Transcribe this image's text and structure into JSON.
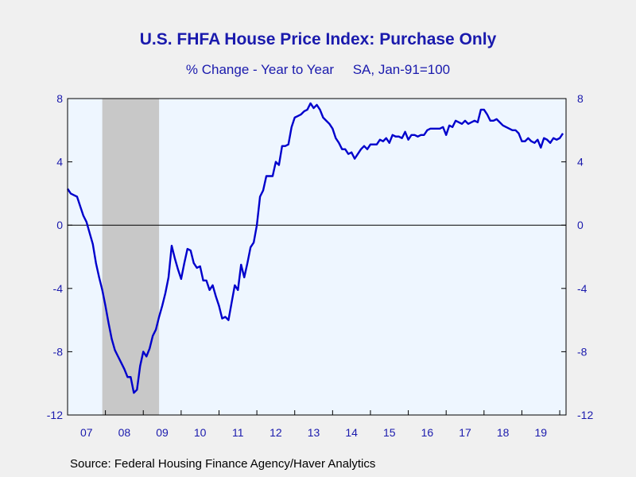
{
  "chart_data": {
    "type": "line",
    "title": "U.S. FHFA House Price Index: Purchase Only",
    "subtitle": "% Change - Year to Year     SA, Jan-91=100",
    "source": "Source:  Federal Housing Finance Agency/Haver Analytics",
    "ylim": [
      -12,
      8
    ],
    "y_ticks": [
      "8",
      "4",
      "0",
      "-4",
      "-8",
      "-12"
    ],
    "x_tick_labels": [
      "07",
      "08",
      "09",
      "10",
      "11",
      "12",
      "13",
      "14",
      "15",
      "16",
      "17",
      "18",
      "19"
    ],
    "x_range": [
      "2007-01",
      "2020-03"
    ],
    "recession_shading": [
      "2007-12",
      "2009-06"
    ],
    "grid": false,
    "colors": {
      "line": "#0000cc",
      "plot_background": "#eef6ff",
      "recession": "#c8c8c8",
      "text": "#1a1aad"
    },
    "series": [
      {
        "values": [
          [
            "2007-01",
            2.3
          ],
          [
            "2007-02",
            2.0
          ],
          [
            "2007-03",
            1.9
          ],
          [
            "2007-04",
            1.8
          ],
          [
            "2007-05",
            1.2
          ],
          [
            "2007-06",
            0.6
          ],
          [
            "2007-07",
            0.2
          ],
          [
            "2007-08",
            -0.5
          ],
          [
            "2007-09",
            -1.2
          ],
          [
            "2007-10",
            -2.4
          ],
          [
            "2007-11",
            -3.3
          ],
          [
            "2007-12",
            -4.1
          ],
          [
            "2008-01",
            -5.1
          ],
          [
            "2008-02",
            -6.2
          ],
          [
            "2008-03",
            -7.2
          ],
          [
            "2008-04",
            -7.9
          ],
          [
            "2008-05",
            -8.3
          ],
          [
            "2008-06",
            -8.7
          ],
          [
            "2008-07",
            -9.1
          ],
          [
            "2008-08",
            -9.6
          ],
          [
            "2008-09",
            -9.6
          ],
          [
            "2008-10",
            -10.6
          ],
          [
            "2008-11",
            -10.4
          ],
          [
            "2008-12",
            -8.9
          ],
          [
            "2009-01",
            -8.0
          ],
          [
            "2009-02",
            -8.3
          ],
          [
            "2009-03",
            -7.8
          ],
          [
            "2009-04",
            -7.0
          ],
          [
            "2009-05",
            -6.6
          ],
          [
            "2009-06",
            -5.8
          ],
          [
            "2009-07",
            -5.1
          ],
          [
            "2009-08",
            -4.3
          ],
          [
            "2009-09",
            -3.3
          ],
          [
            "2009-10",
            -1.3
          ],
          [
            "2009-11",
            -2.1
          ],
          [
            "2009-12",
            -2.8
          ],
          [
            "2010-01",
            -3.4
          ],
          [
            "2010-02",
            -2.4
          ],
          [
            "2010-03",
            -1.5
          ],
          [
            "2010-04",
            -1.6
          ],
          [
            "2010-05",
            -2.4
          ],
          [
            "2010-06",
            -2.7
          ],
          [
            "2010-07",
            -2.6
          ],
          [
            "2010-08",
            -3.5
          ],
          [
            "2010-09",
            -3.5
          ],
          [
            "2010-10",
            -4.1
          ],
          [
            "2010-11",
            -3.8
          ],
          [
            "2010-12",
            -4.5
          ],
          [
            "2011-01",
            -5.1
          ],
          [
            "2011-02",
            -5.9
          ],
          [
            "2011-03",
            -5.8
          ],
          [
            "2011-04",
            -6.0
          ],
          [
            "2011-05",
            -4.9
          ],
          [
            "2011-06",
            -3.8
          ],
          [
            "2011-07",
            -4.1
          ],
          [
            "2011-08",
            -2.5
          ],
          [
            "2011-09",
            -3.3
          ],
          [
            "2011-10",
            -2.4
          ],
          [
            "2011-11",
            -1.4
          ],
          [
            "2011-12",
            -1.1
          ],
          [
            "2012-01",
            0.0
          ],
          [
            "2012-02",
            1.8
          ],
          [
            "2012-03",
            2.2
          ],
          [
            "2012-04",
            3.1
          ],
          [
            "2012-05",
            3.1
          ],
          [
            "2012-06",
            3.1
          ],
          [
            "2012-07",
            4.0
          ],
          [
            "2012-08",
            3.8
          ],
          [
            "2012-09",
            5.0
          ],
          [
            "2012-10",
            5.0
          ],
          [
            "2012-11",
            5.1
          ],
          [
            "2012-12",
            6.2
          ],
          [
            "2013-01",
            6.8
          ],
          [
            "2013-02",
            6.9
          ],
          [
            "2013-03",
            7.0
          ],
          [
            "2013-04",
            7.2
          ],
          [
            "2013-05",
            7.3
          ],
          [
            "2013-06",
            7.7
          ],
          [
            "2013-07",
            7.4
          ],
          [
            "2013-08",
            7.6
          ],
          [
            "2013-09",
            7.3
          ],
          [
            "2013-10",
            6.8
          ],
          [
            "2013-11",
            6.6
          ],
          [
            "2013-12",
            6.4
          ],
          [
            "2014-01",
            6.1
          ],
          [
            "2014-02",
            5.5
          ],
          [
            "2014-03",
            5.2
          ],
          [
            "2014-04",
            4.8
          ],
          [
            "2014-05",
            4.8
          ],
          [
            "2014-06",
            4.5
          ],
          [
            "2014-07",
            4.6
          ],
          [
            "2014-08",
            4.2
          ],
          [
            "2014-09",
            4.5
          ],
          [
            "2014-10",
            4.8
          ],
          [
            "2014-11",
            5.0
          ],
          [
            "2014-12",
            4.8
          ],
          [
            "2015-01",
            5.1
          ],
          [
            "2015-02",
            5.1
          ],
          [
            "2015-03",
            5.1
          ],
          [
            "2015-04",
            5.4
          ],
          [
            "2015-05",
            5.3
          ],
          [
            "2015-06",
            5.5
          ],
          [
            "2015-07",
            5.2
          ],
          [
            "2015-08",
            5.7
          ],
          [
            "2015-09",
            5.6
          ],
          [
            "2015-10",
            5.6
          ],
          [
            "2015-11",
            5.5
          ],
          [
            "2015-12",
            5.9
          ],
          [
            "2016-01",
            5.4
          ],
          [
            "2016-02",
            5.7
          ],
          [
            "2016-03",
            5.7
          ],
          [
            "2016-04",
            5.6
          ],
          [
            "2016-05",
            5.7
          ],
          [
            "2016-06",
            5.7
          ],
          [
            "2016-07",
            6.0
          ],
          [
            "2016-08",
            6.1
          ],
          [
            "2016-09",
            6.1
          ],
          [
            "2016-10",
            6.1
          ],
          [
            "2016-11",
            6.1
          ],
          [
            "2016-12",
            6.2
          ],
          [
            "2017-01",
            5.7
          ],
          [
            "2017-02",
            6.3
          ],
          [
            "2017-03",
            6.2
          ],
          [
            "2017-04",
            6.6
          ],
          [
            "2017-05",
            6.5
          ],
          [
            "2017-06",
            6.4
          ],
          [
            "2017-07",
            6.6
          ],
          [
            "2017-08",
            6.4
          ],
          [
            "2017-09",
            6.5
          ],
          [
            "2017-10",
            6.6
          ],
          [
            "2017-11",
            6.5
          ],
          [
            "2017-12",
            7.3
          ],
          [
            "2018-01",
            7.3
          ],
          [
            "2018-02",
            7.0
          ],
          [
            "2018-03",
            6.6
          ],
          [
            "2018-04",
            6.6
          ],
          [
            "2018-05",
            6.7
          ],
          [
            "2018-06",
            6.5
          ],
          [
            "2018-07",
            6.3
          ],
          [
            "2018-08",
            6.2
          ],
          [
            "2018-09",
            6.1
          ],
          [
            "2018-10",
            6.0
          ],
          [
            "2018-11",
            6.0
          ],
          [
            "2018-12",
            5.8
          ],
          [
            "2019-01",
            5.3
          ],
          [
            "2019-02",
            5.3
          ],
          [
            "2019-03",
            5.5
          ],
          [
            "2019-04",
            5.3
          ],
          [
            "2019-05",
            5.2
          ],
          [
            "2019-06",
            5.4
          ],
          [
            "2019-07",
            4.9
          ],
          [
            "2019-08",
            5.5
          ],
          [
            "2019-09",
            5.4
          ],
          [
            "2019-10",
            5.2
          ],
          [
            "2019-11",
            5.5
          ],
          [
            "2019-12",
            5.4
          ],
          [
            "2020-01",
            5.5
          ],
          [
            "2020-02",
            5.8
          ]
        ]
      }
    ]
  }
}
